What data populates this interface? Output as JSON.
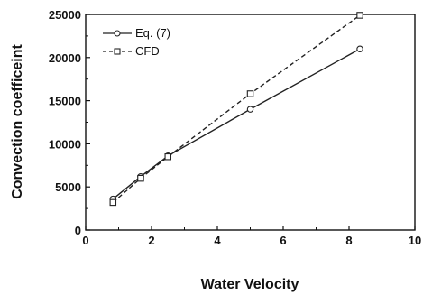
{
  "chart_data": {
    "type": "line",
    "title": "",
    "xlabel": "Water Velocity",
    "ylabel": "Convection coefficeint",
    "xlim": [
      0,
      10
    ],
    "ylim": [
      0,
      25000
    ],
    "x_ticks": [
      0,
      2,
      4,
      6,
      8,
      10
    ],
    "y_ticks": [
      0,
      5000,
      10000,
      15000,
      20000,
      25000
    ],
    "x_tick_labels": [
      "0",
      "2",
      "4",
      "6",
      "8",
      "10"
    ],
    "y_tick_labels": [
      "0",
      "5000",
      "10000",
      "15000",
      "20000",
      "25000"
    ],
    "grid": false,
    "legend_position": "top-left",
    "series": [
      {
        "name": "Eq. (7)",
        "marker": "circle",
        "line_style": "solid",
        "color": "#222222",
        "x": [
          0.83,
          1.67,
          2.5,
          5.0,
          8.33
        ],
        "y": [
          3600,
          6200,
          8600,
          14000,
          21000
        ]
      },
      {
        "name": "CFD",
        "marker": "square",
        "line_style": "dashed",
        "color": "#222222",
        "x": [
          0.83,
          1.67,
          2.5,
          5.0,
          8.33
        ],
        "y": [
          3200,
          6000,
          8500,
          15800,
          24900
        ]
      }
    ]
  }
}
